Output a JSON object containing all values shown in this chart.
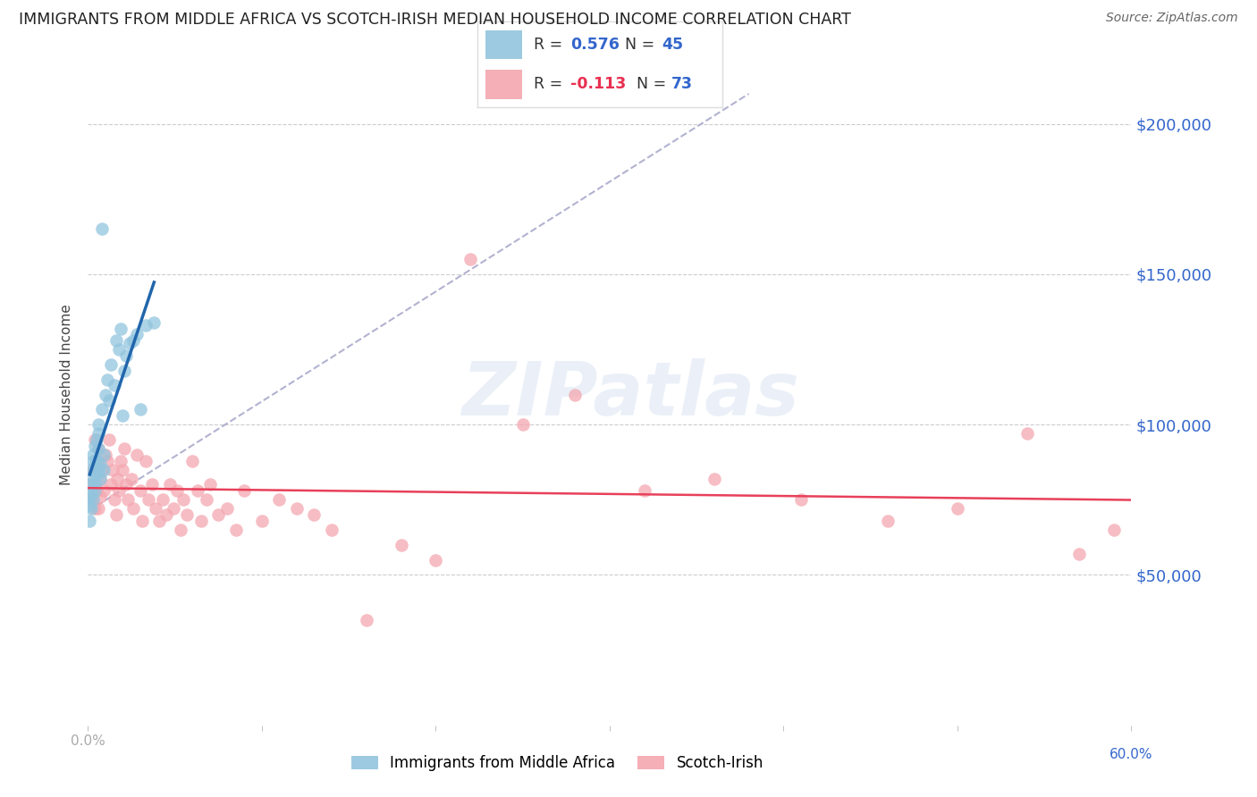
{
  "title": "IMMIGRANTS FROM MIDDLE AFRICA VS SCOTCH-IRISH MEDIAN HOUSEHOLD INCOME CORRELATION CHART",
  "source": "Source: ZipAtlas.com",
  "ylabel": "Median Household Income",
  "yticks": [
    50000,
    100000,
    150000,
    200000
  ],
  "ytick_labels": [
    "$50,000",
    "$100,000",
    "$150,000",
    "$200,000"
  ],
  "xlim": [
    0.0,
    0.6
  ],
  "ylim": [
    0,
    220000
  ],
  "legend_r1_label": "R = ",
  "legend_r1_val": "0.576",
  "legend_n1_label": "N = ",
  "legend_n1_val": "45",
  "legend_r2_label": "R = ",
  "legend_r2_val": "-0.113",
  "legend_n2_label": "N = ",
  "legend_n2_val": "73",
  "blue_color": "#92c5de",
  "pink_color": "#f4a7b0",
  "blue_line_color": "#2166ac",
  "pink_line_color": "#e8405a",
  "dashed_line_color": "#aaaacc",
  "watermark": "ZIPatlas",
  "xtick_positions": [
    0.0,
    0.1,
    0.2,
    0.3,
    0.4,
    0.5,
    0.6
  ],
  "blue_scatter_x": [
    0.001,
    0.001,
    0.001,
    0.002,
    0.002,
    0.002,
    0.002,
    0.003,
    0.003,
    0.003,
    0.003,
    0.004,
    0.004,
    0.004,
    0.004,
    0.005,
    0.005,
    0.005,
    0.006,
    0.006,
    0.006,
    0.006,
    0.007,
    0.007,
    0.008,
    0.008,
    0.009,
    0.009,
    0.01,
    0.011,
    0.012,
    0.013,
    0.015,
    0.016,
    0.018,
    0.019,
    0.02,
    0.021,
    0.022,
    0.024,
    0.026,
    0.028,
    0.03,
    0.033,
    0.038
  ],
  "blue_scatter_y": [
    73000,
    68000,
    76000,
    80000,
    72000,
    85000,
    77000,
    90000,
    88000,
    82000,
    75000,
    93000,
    86000,
    80000,
    78000,
    95000,
    88000,
    83000,
    97000,
    100000,
    92000,
    85000,
    87000,
    82000,
    105000,
    165000,
    90000,
    85000,
    110000,
    115000,
    108000,
    120000,
    113000,
    128000,
    125000,
    132000,
    103000,
    118000,
    123000,
    127000,
    128000,
    130000,
    105000,
    133000,
    134000
  ],
  "pink_scatter_x": [
    0.001,
    0.002,
    0.003,
    0.004,
    0.004,
    0.005,
    0.005,
    0.006,
    0.006,
    0.007,
    0.007,
    0.008,
    0.009,
    0.01,
    0.011,
    0.012,
    0.013,
    0.014,
    0.015,
    0.016,
    0.017,
    0.018,
    0.019,
    0.02,
    0.021,
    0.022,
    0.023,
    0.025,
    0.026,
    0.028,
    0.03,
    0.031,
    0.033,
    0.035,
    0.037,
    0.039,
    0.041,
    0.043,
    0.045,
    0.047,
    0.049,
    0.051,
    0.053,
    0.055,
    0.057,
    0.06,
    0.063,
    0.065,
    0.068,
    0.07,
    0.075,
    0.08,
    0.085,
    0.09,
    0.1,
    0.11,
    0.12,
    0.13,
    0.14,
    0.16,
    0.18,
    0.2,
    0.22,
    0.25,
    0.28,
    0.32,
    0.36,
    0.41,
    0.46,
    0.5,
    0.54,
    0.57,
    0.59
  ],
  "pink_scatter_y": [
    80000,
    75000,
    85000,
    72000,
    95000,
    78000,
    88000,
    92000,
    72000,
    82000,
    76000,
    85000,
    78000,
    90000,
    88000,
    95000,
    80000,
    85000,
    75000,
    70000,
    82000,
    78000,
    88000,
    85000,
    92000,
    80000,
    75000,
    82000,
    72000,
    90000,
    78000,
    68000,
    88000,
    75000,
    80000,
    72000,
    68000,
    75000,
    70000,
    80000,
    72000,
    78000,
    65000,
    75000,
    70000,
    88000,
    78000,
    68000,
    75000,
    80000,
    70000,
    72000,
    65000,
    78000,
    68000,
    75000,
    72000,
    70000,
    65000,
    35000,
    60000,
    55000,
    155000,
    100000,
    110000,
    78000,
    82000,
    75000,
    68000,
    72000,
    97000,
    57000,
    65000
  ]
}
